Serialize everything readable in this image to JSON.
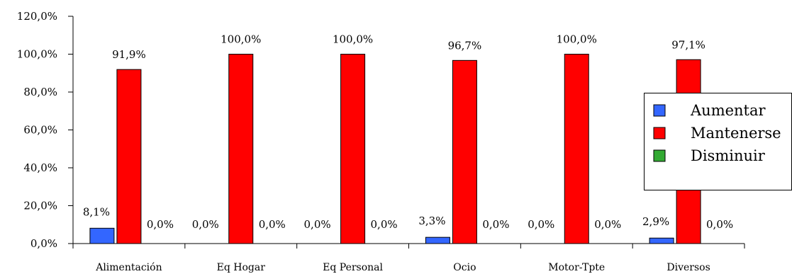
{
  "chart_data": {
    "type": "bar",
    "categories": [
      "Alimentación",
      "Eq Hogar",
      "Eq Personal",
      "Ocio",
      "Motor-Tpte",
      "Diversos"
    ],
    "series": [
      {
        "name": "Aumentar",
        "color": "#3366ff",
        "values": [
          8.1,
          0.0,
          0.0,
          3.3,
          0.0,
          2.9
        ],
        "labels": [
          "8,1%",
          "0,0%",
          "0,0%",
          "3,3%",
          "0,0%",
          "2,9%"
        ]
      },
      {
        "name": "Mantenerse",
        "color": "#ff0000",
        "values": [
          91.9,
          100.0,
          100.0,
          96.7,
          100.0,
          97.1
        ],
        "labels": [
          "91,9%",
          "100,0%",
          "100,0%",
          "96,7%",
          "100,0%",
          "97,1%"
        ]
      },
      {
        "name": "Disminuir",
        "color": "#33aa33",
        "values": [
          0.0,
          0.0,
          0.0,
          0.0,
          0.0,
          0.0
        ],
        "labels": [
          "0,0%",
          "0,0%",
          "0,0%",
          "0,0%",
          "0,0%",
          "0,0%"
        ]
      }
    ],
    "yticks": [
      "0,0%",
      "20,0%",
      "40,0%",
      "60,0%",
      "80,0%",
      "100,0%",
      "120,0%"
    ],
    "ylim": [
      0,
      120
    ],
    "ystep": 20,
    "title": "",
    "xlabel": "",
    "ylabel": "",
    "grid": false,
    "legend": "right"
  }
}
